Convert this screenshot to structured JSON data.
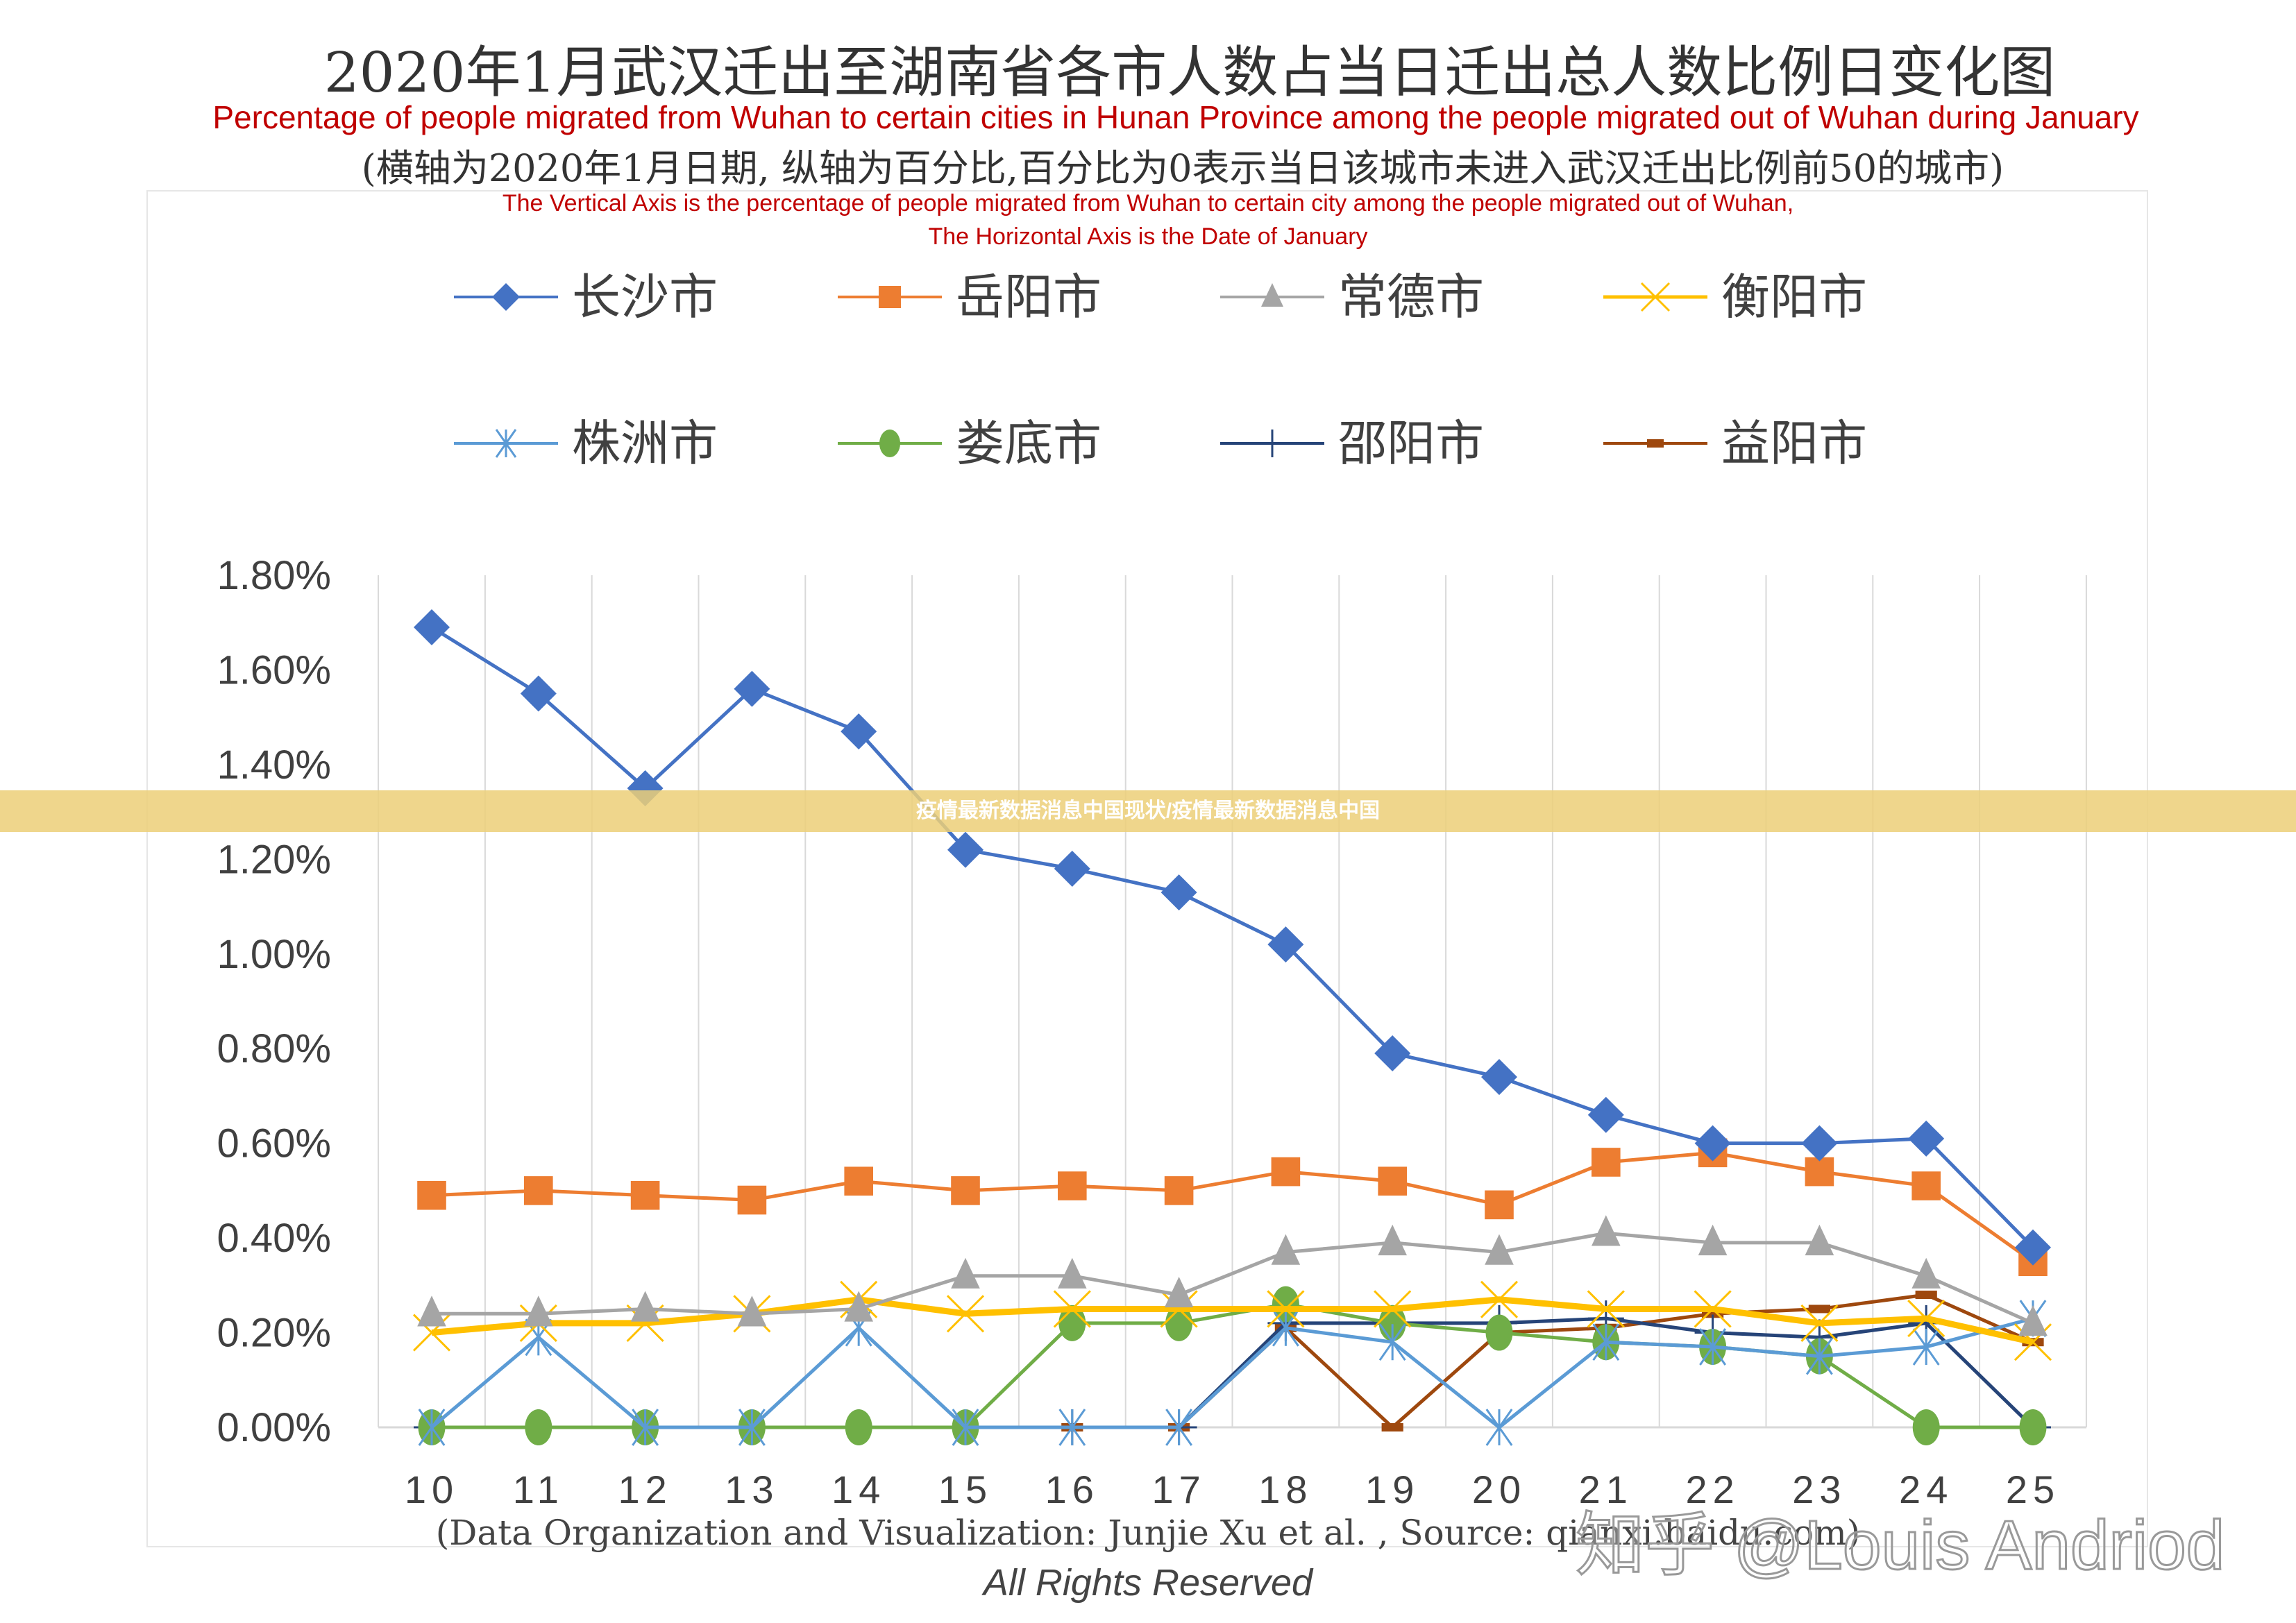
{
  "banner": "疫情最新数据消息中国现状/疫情最新数据消息中国",
  "watermark": "知乎 @Louis Andriod",
  "chart_data": {
    "type": "line",
    "title": "2020年1月武汉迁出至湖南省各市人数占当日迁出总人数比例日变化图",
    "subtitle": "Percentage of people migrated from Wuhan to certain cities in Hunan Province among the people migrated out of Wuhan during January",
    "note": "(横轴为2020年1月日期, 纵轴为百分比,百分比为0表示当日该城市未进入武汉迁出比例前50的城市)",
    "axis_note_1": "The Vertical Axis is the percentage of people migrated from Wuhan to certain city  among the people migrated out of Wuhan,",
    "axis_note_2": "The Horizontal Axis is the Date of January",
    "footer": "(Data Organization and Visualization: Junjie Xu et al. , Source: qianxi.baidu.com)",
    "rights": "All Rights Reserved",
    "categories": [
      "10",
      "11",
      "12",
      "13",
      "14",
      "15",
      "16",
      "17",
      "18",
      "19",
      "20",
      "21",
      "22",
      "23",
      "24",
      "25"
    ],
    "ylim": [
      0,
      1.8
    ],
    "yticks": [
      "0.00%",
      "0.20%",
      "0.40%",
      "0.60%",
      "0.80%",
      "1.00%",
      "1.20%",
      "1.40%",
      "1.60%",
      "1.80%"
    ],
    "grid": "vertical",
    "legend": "top",
    "series": [
      {
        "name": "长沙市",
        "color": "#4472c4",
        "marker": "diamond",
        "values": [
          1.69,
          1.55,
          1.35,
          1.56,
          1.47,
          1.22,
          1.18,
          1.13,
          1.02,
          0.79,
          0.74,
          0.66,
          0.6,
          0.6,
          0.61,
          0.38
        ]
      },
      {
        "name": "岳阳市",
        "color": "#ed7d31",
        "marker": "square",
        "values": [
          0.49,
          0.5,
          0.49,
          0.48,
          0.52,
          0.5,
          0.51,
          0.5,
          0.54,
          0.52,
          0.47,
          0.56,
          0.58,
          0.54,
          0.51,
          0.35
        ]
      },
      {
        "name": "常德市",
        "color": "#a5a5a5",
        "marker": "triangle",
        "values": [
          0.24,
          0.24,
          0.25,
          0.24,
          0.25,
          0.32,
          0.32,
          0.28,
          0.37,
          0.39,
          0.37,
          0.41,
          0.39,
          0.39,
          0.32,
          0.22
        ]
      },
      {
        "name": "衡阳市",
        "color": "#ffc000",
        "marker": "x",
        "values": [
          0.2,
          0.22,
          0.22,
          0.24,
          0.27,
          0.24,
          0.25,
          0.25,
          0.25,
          0.25,
          0.27,
          0.25,
          0.25,
          0.22,
          0.23,
          0.18
        ]
      },
      {
        "name": "株洲市",
        "color": "#5b9bd5",
        "marker": "star",
        "values": [
          0,
          0.19,
          0,
          0,
          0.21,
          0,
          0,
          0,
          0.21,
          0.18,
          0,
          0.18,
          0.17,
          0.15,
          0.17,
          0.23
        ]
      },
      {
        "name": "娄底市",
        "color": "#70ad47",
        "marker": "circle",
        "values": [
          0,
          0,
          0,
          0,
          0,
          0,
          0.22,
          0.22,
          0.26,
          0.22,
          0.2,
          0.18,
          0.17,
          0.15,
          0,
          0
        ]
      },
      {
        "name": "邵阳市",
        "color": "#264478",
        "marker": "plus",
        "values": [
          0,
          0,
          0,
          0,
          0,
          0,
          0,
          0,
          0.22,
          0.22,
          0.22,
          0.23,
          0.2,
          0.19,
          0.22,
          0
        ]
      },
      {
        "name": "益阳市",
        "color": "#9e480e",
        "marker": "dash",
        "values": [
          0,
          0,
          0,
          0,
          0,
          0,
          0,
          0,
          0.21,
          0,
          0.2,
          0.21,
          0.24,
          0.25,
          0.28,
          0.18
        ]
      }
    ]
  }
}
